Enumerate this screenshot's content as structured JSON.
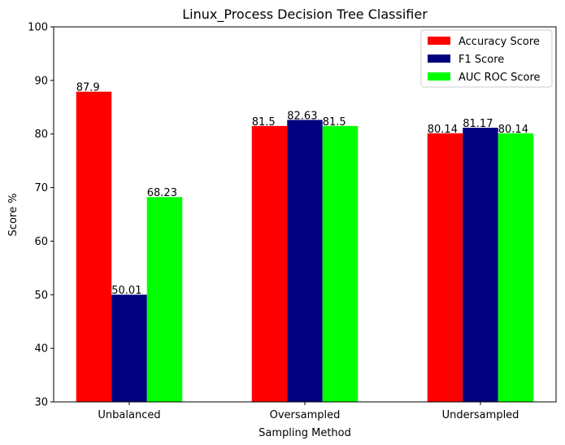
{
  "chart_data": {
    "type": "bar",
    "title": "Linux_Process Decision Tree Classifier",
    "xlabel": "Sampling Method",
    "ylabel": "Score %",
    "categories": [
      "Unbalanced",
      "Oversampled",
      "Undersampled"
    ],
    "series": [
      {
        "name": "Accuracy Score",
        "color": "#ff0000",
        "values": [
          87.9,
          81.5,
          80.14
        ]
      },
      {
        "name": "F1 Score",
        "color": "#000080",
        "values": [
          50.01,
          82.63,
          81.17
        ]
      },
      {
        "name": "AUC ROC Score",
        "color": "#00ff00",
        "values": [
          68.23,
          81.5,
          80.14
        ]
      }
    ],
    "ylim": [
      30,
      100
    ],
    "yticks": [
      30,
      40,
      50,
      60,
      70,
      80,
      90,
      100
    ],
    "legend_position": "top-right",
    "grid": false
  }
}
